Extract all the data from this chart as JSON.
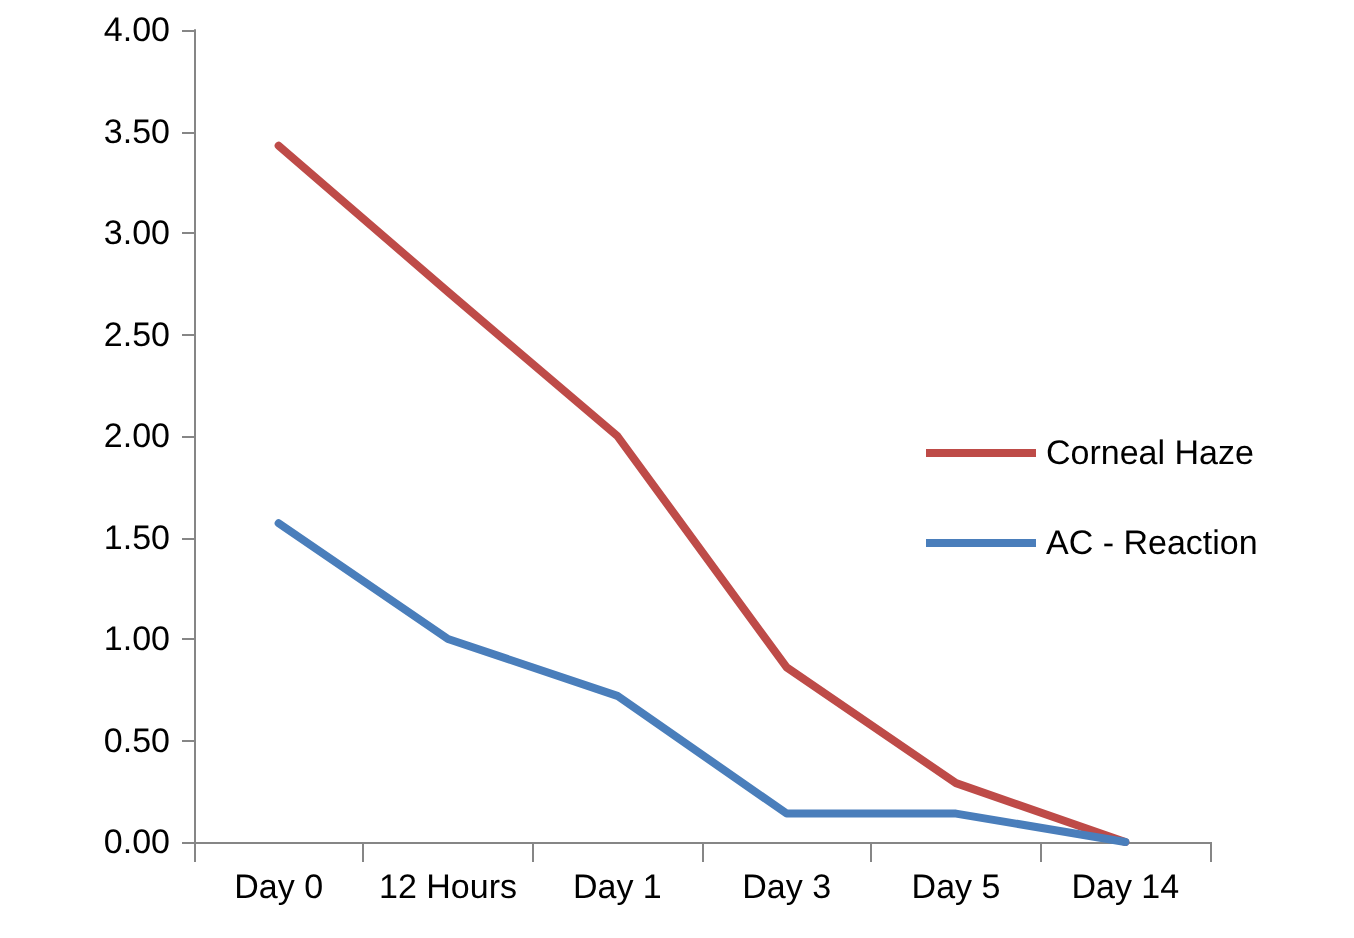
{
  "chart_data": {
    "type": "line",
    "categories": [
      "Day 0",
      "12 Hours",
      "Day 1",
      "Day 3",
      "Day 5",
      "Day 14"
    ],
    "series": [
      {
        "name": "Corneal Haze",
        "color": "#be4b48",
        "values": [
          3.43,
          2.71,
          2.0,
          0.86,
          0.29,
          0
        ]
      },
      {
        "name": "AC - Reaction",
        "color": "#4a7ebb",
        "values": [
          1.57,
          1.0,
          0.72,
          0.14,
          0.14,
          0
        ]
      }
    ],
    "ylim": [
      0,
      4
    ],
    "yticks": [
      {
        "value": 0,
        "label": "0.00"
      },
      {
        "value": 0.5,
        "label": "0.50"
      },
      {
        "value": 1,
        "label": "1.00"
      },
      {
        "value": 1.5,
        "label": "1.50"
      },
      {
        "value": 2,
        "label": "2.00"
      },
      {
        "value": 2.5,
        "label": "2.50"
      },
      {
        "value": 3,
        "label": "3.00"
      },
      {
        "value": 3.5,
        "label": "3.50"
      },
      {
        "value": 4,
        "label": "4.00"
      }
    ],
    "grid": false,
    "legend": "right",
    "marker": "none",
    "line_style": "solid"
  }
}
